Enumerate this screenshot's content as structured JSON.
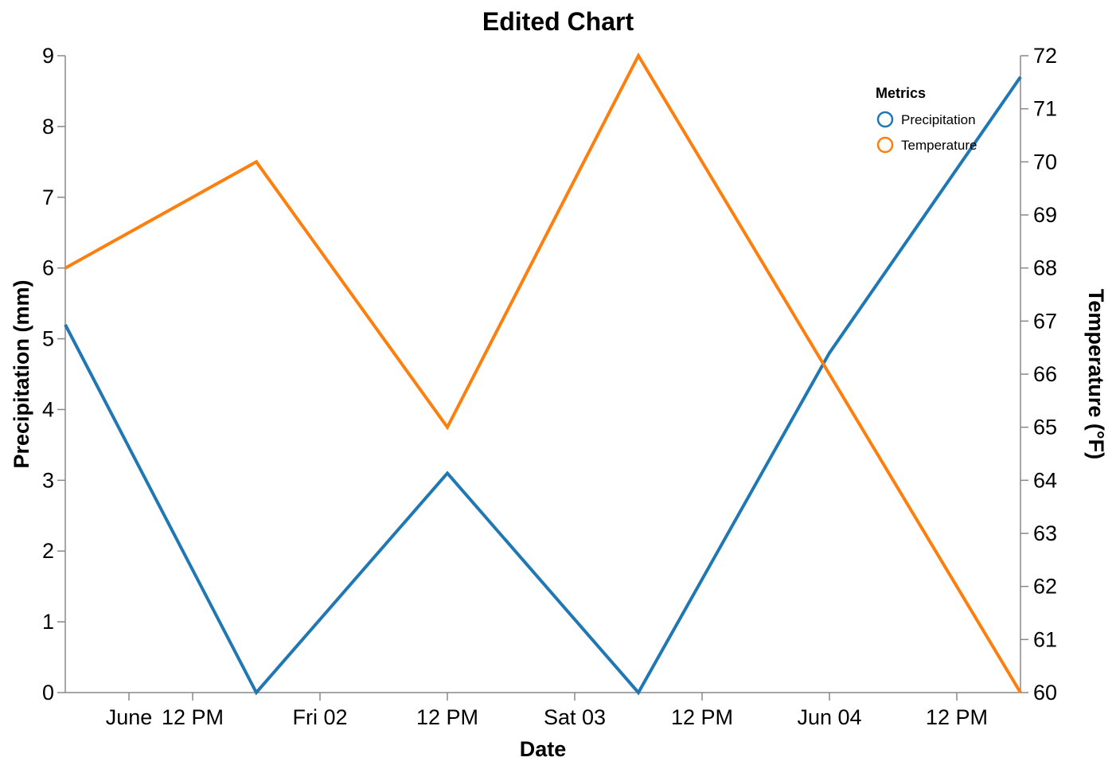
{
  "chart_data": {
    "type": "line",
    "title": "Edited Chart",
    "xlabel": "Date",
    "ylabel_left": "Precipitation (mm)",
    "ylabel_right": "Temperature (°F)",
    "x": [
      "2024-06-01T00:00",
      "2024-06-01T18:00",
      "2024-06-02T12:00",
      "2024-06-03T06:00",
      "2024-06-04T00:00",
      "2024-06-04T18:00"
    ],
    "x_range": [
      "2024-06-01T00:00",
      "2024-06-04T18:00"
    ],
    "x_ticks": [
      {
        "t": "2024-06-01T06:00",
        "label": "June"
      },
      {
        "t": "2024-06-01T12:00",
        "label": "12 PM"
      },
      {
        "t": "2024-06-02T00:00",
        "label": "Fri 02"
      },
      {
        "t": "2024-06-02T12:00",
        "label": "12 PM"
      },
      {
        "t": "2024-06-03T00:00",
        "label": "Sat 03"
      },
      {
        "t": "2024-06-03T12:00",
        "label": "12 PM"
      },
      {
        "t": "2024-06-04T00:00",
        "label": "Jun 04"
      },
      {
        "t": "2024-06-04T12:00",
        "label": "12 PM"
      }
    ],
    "ylim_left": [
      0,
      9
    ],
    "ylim_right": [
      60,
      72
    ],
    "yticks_left": [
      0,
      1,
      2,
      3,
      4,
      5,
      6,
      7,
      8,
      9
    ],
    "yticks_right": [
      60,
      61,
      62,
      63,
      64,
      65,
      66,
      67,
      68,
      69,
      70,
      71,
      72
    ],
    "series": [
      {
        "name": "Precipitation",
        "axis": "left",
        "color": "#1f77b4",
        "values": [
          5.2,
          0.0,
          3.1,
          0.0,
          4.8,
          8.7
        ]
      },
      {
        "name": "Temperature",
        "axis": "right",
        "color": "#ff7f0e",
        "values": [
          68,
          70,
          65,
          72,
          66,
          60
        ]
      }
    ],
    "legend": {
      "title": "Metrics",
      "position": "top-right"
    },
    "grid": false
  }
}
